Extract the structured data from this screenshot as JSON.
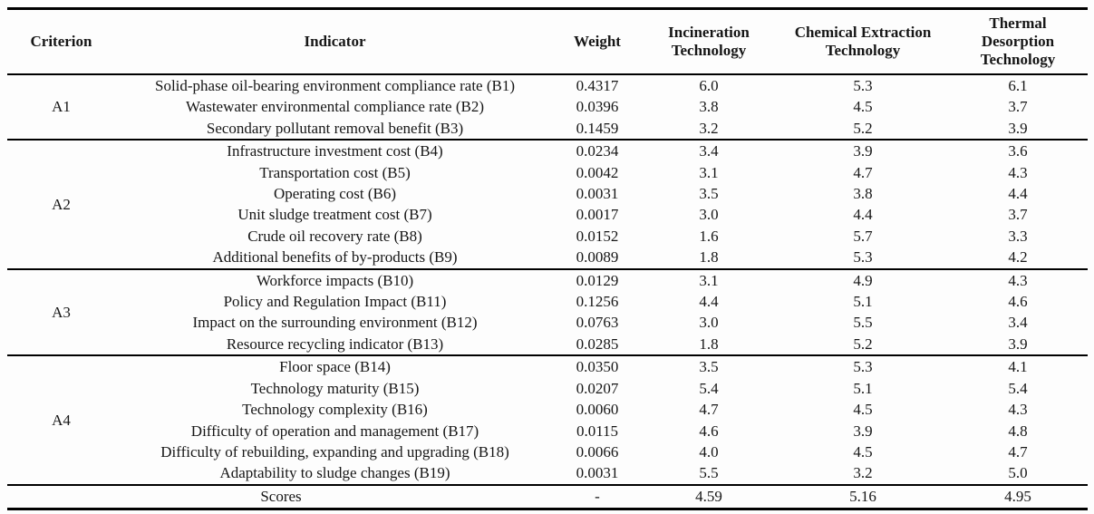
{
  "table": {
    "headers": {
      "criterion": "Criterion",
      "indicator": "Indicator",
      "weight": "Weight",
      "tech1": "Incineration Technology",
      "tech2": "Chemical Extraction Technology",
      "tech3": "Thermal Desorption Technology"
    },
    "groups": [
      {
        "criterion": "A1",
        "rows": [
          {
            "indicator": "Solid-phase oil-bearing environment compliance rate (B1)",
            "weight": "0.4317",
            "values": [
              "6.0",
              "5.3",
              "6.1"
            ]
          },
          {
            "indicator": "Wastewater environmental compliance rate (B2)",
            "weight": "0.0396",
            "values": [
              "3.8",
              "4.5",
              "3.7"
            ]
          },
          {
            "indicator": "Secondary pollutant removal benefit (B3)",
            "weight": "0.1459",
            "values": [
              "3.2",
              "5.2",
              "3.9"
            ]
          }
        ]
      },
      {
        "criterion": "A2",
        "rows": [
          {
            "indicator": "Infrastructure investment cost (B4)",
            "weight": "0.0234",
            "values": [
              "3.4",
              "3.9",
              "3.6"
            ]
          },
          {
            "indicator": "Transportation cost (B5)",
            "weight": "0.0042",
            "values": [
              "3.1",
              "4.7",
              "4.3"
            ]
          },
          {
            "indicator": "Operating cost (B6)",
            "weight": "0.0031",
            "values": [
              "3.5",
              "3.8",
              "4.4"
            ]
          },
          {
            "indicator": "Unit sludge treatment cost (B7)",
            "weight": "0.0017",
            "values": [
              "3.0",
              "4.4",
              "3.7"
            ]
          },
          {
            "indicator": "Crude oil recovery rate (B8)",
            "weight": "0.0152",
            "values": [
              "1.6",
              "5.7",
              "3.3"
            ]
          },
          {
            "indicator": "Additional benefits of by-products (B9)",
            "weight": "0.0089",
            "values": [
              "1.8",
              "5.3",
              "4.2"
            ]
          }
        ]
      },
      {
        "criterion": "A3",
        "rows": [
          {
            "indicator": "Workforce impacts (B10)",
            "weight": "0.0129",
            "values": [
              "3.1",
              "4.9",
              "4.3"
            ]
          },
          {
            "indicator": "Policy and Regulation Impact (B11)",
            "weight": "0.1256",
            "values": [
              "4.4",
              "5.1",
              "4.6"
            ]
          },
          {
            "indicator": "Impact on the surrounding environment (B12)",
            "weight": "0.0763",
            "values": [
              "3.0",
              "5.5",
              "3.4"
            ]
          },
          {
            "indicator": "Resource recycling indicator (B13)",
            "weight": "0.0285",
            "values": [
              "1.8",
              "5.2",
              "3.9"
            ]
          }
        ]
      },
      {
        "criterion": "A4",
        "rows": [
          {
            "indicator": "Floor space (B14)",
            "weight": "0.0350",
            "values": [
              "3.5",
              "5.3",
              "4.1"
            ]
          },
          {
            "indicator": "Technology maturity (B15)",
            "weight": "0.0207",
            "values": [
              "5.4",
              "5.1",
              "5.4"
            ]
          },
          {
            "indicator": "Technology complexity (B16)",
            "weight": "0.0060",
            "values": [
              "4.7",
              "4.5",
              "4.3"
            ]
          },
          {
            "indicator": "Difficulty of operation and management (B17)",
            "weight": "0.0115",
            "values": [
              "4.6",
              "3.9",
              "4.8"
            ]
          },
          {
            "indicator": "Difficulty of rebuilding, expanding and upgrading (B18)",
            "weight": "0.0066",
            "values": [
              "4.0",
              "4.5",
              "4.7"
            ]
          },
          {
            "indicator": "Adaptability to sludge changes (B19)",
            "weight": "0.0031",
            "values": [
              "5.5",
              "3.2",
              "5.0"
            ]
          }
        ]
      }
    ],
    "footer": {
      "label": "Scores",
      "weight": "-",
      "values": [
        "4.59",
        "5.16",
        "4.95"
      ]
    }
  }
}
